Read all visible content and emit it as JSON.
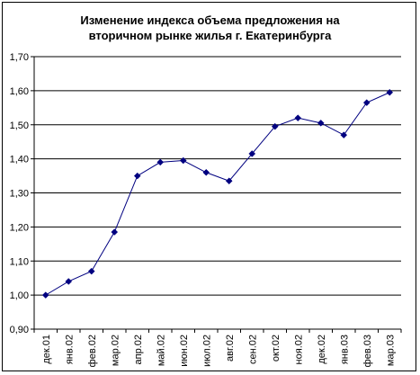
{
  "chart_data": {
    "type": "line",
    "title": "Изменение индекса объема предложения на\nвторичном рынке жилья г. Екатеринбурга",
    "xlabel": "",
    "ylabel": "",
    "categories": [
      "дек.01",
      "янв.02",
      "фев.02",
      "мар.02",
      "апр.02",
      "май.02",
      "июн.02",
      "июл.02",
      "авг.02",
      "сен.02",
      "окт.02",
      "ноя.02",
      "дек.02",
      "янв.03",
      "фев.03",
      "мар.03"
    ],
    "series": [
      {
        "values": [
          1.0,
          1.04,
          1.07,
          1.185,
          1.35,
          1.39,
          1.395,
          1.36,
          1.335,
          1.415,
          1.495,
          1.52,
          1.505,
          1.47,
          1.565,
          1.595
        ],
        "color": "#000080"
      }
    ],
    "ylim": [
      0.9,
      1.7
    ],
    "y_ticks": [
      "0,90",
      "1,00",
      "1,10",
      "1,20",
      "1,30",
      "1,40",
      "1,50",
      "1,60",
      "1,70"
    ],
    "grid": "horizontal",
    "legend": "none"
  }
}
